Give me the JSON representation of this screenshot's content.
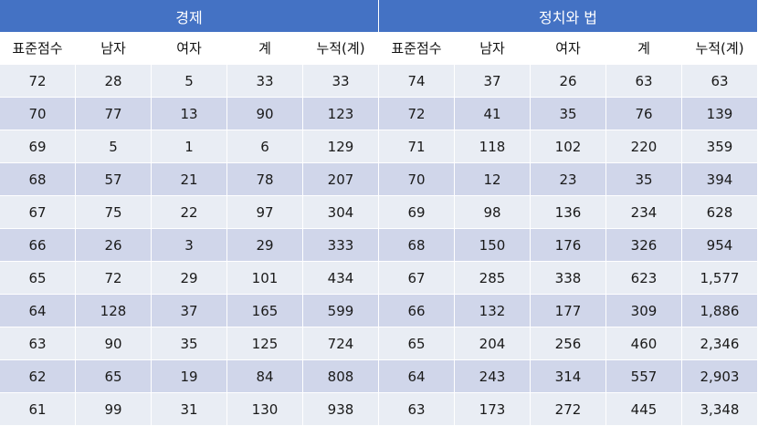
{
  "table": {
    "groups": [
      "경제",
      "정치와 법"
    ],
    "columns": [
      "표준점수",
      "남자",
      "여자",
      "계",
      "누적(계)"
    ],
    "economy_rows": [
      [
        "72",
        "28",
        "5",
        "33",
        "33"
      ],
      [
        "70",
        "77",
        "13",
        "90",
        "123"
      ],
      [
        "69",
        "5",
        "1",
        "6",
        "129"
      ],
      [
        "68",
        "57",
        "21",
        "78",
        "207"
      ],
      [
        "67",
        "75",
        "22",
        "97",
        "304"
      ],
      [
        "66",
        "26",
        "3",
        "29",
        "333"
      ],
      [
        "65",
        "72",
        "29",
        "101",
        "434"
      ],
      [
        "64",
        "128",
        "37",
        "165",
        "599"
      ],
      [
        "63",
        "90",
        "35",
        "125",
        "724"
      ],
      [
        "62",
        "65",
        "19",
        "84",
        "808"
      ],
      [
        "61",
        "99",
        "31",
        "130",
        "938"
      ]
    ],
    "politics_law_rows": [
      [
        "74",
        "37",
        "26",
        "63",
        "63"
      ],
      [
        "72",
        "41",
        "35",
        "76",
        "139"
      ],
      [
        "71",
        "118",
        "102",
        "220",
        "359"
      ],
      [
        "70",
        "12",
        "23",
        "35",
        "394"
      ],
      [
        "69",
        "98",
        "136",
        "234",
        "628"
      ],
      [
        "68",
        "150",
        "176",
        "326",
        "954"
      ],
      [
        "67",
        "285",
        "338",
        "623",
        "1,577"
      ],
      [
        "66",
        "132",
        "177",
        "309",
        "1,886"
      ],
      [
        "65",
        "204",
        "256",
        "460",
        "2,346"
      ],
      [
        "64",
        "243",
        "314",
        "557",
        "2,903"
      ],
      [
        "63",
        "173",
        "272",
        "445",
        "3,348"
      ]
    ]
  },
  "colors": {
    "header": "#4472c4",
    "row_light": "#e9edf4",
    "row_dark": "#d0d6ea"
  }
}
